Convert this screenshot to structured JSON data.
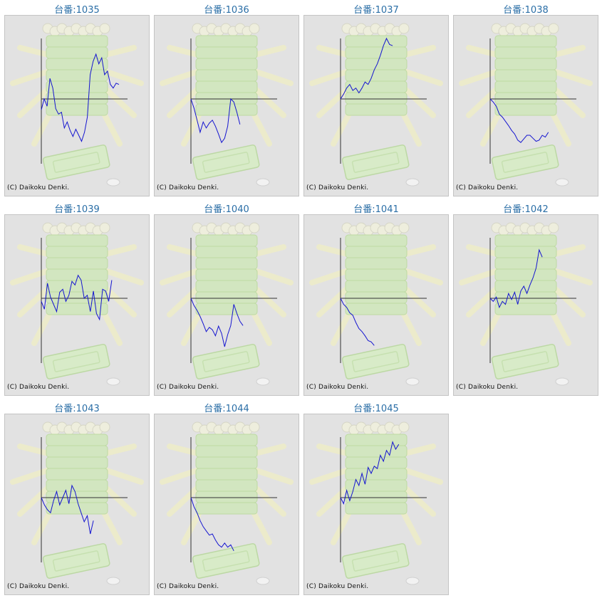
{
  "copyright": "(C) Daikoku Denki.",
  "colors": {
    "title": "#2a6ea6",
    "line": "#1515d0",
    "axis": "#333333",
    "panel": "#e2e2e2"
  },
  "chart_data": [
    {
      "type": "line",
      "title": "台番:1035",
      "y": [
        -18,
        0,
        -12,
        34,
        18,
        -16,
        -25,
        -22,
        -48,
        -38,
        -52,
        -62,
        -50,
        -60,
        -70,
        -55,
        -30,
        40,
        62,
        74,
        58,
        68,
        40,
        46,
        24,
        18,
        26,
        24
      ]
    },
    {
      "type": "line",
      "title": "台番:1036",
      "y": [
        0,
        -15,
        -35,
        -55,
        -38,
        -48,
        -40,
        -35,
        -45,
        -58,
        -72,
        -65,
        -45,
        0,
        -5,
        -22,
        -42
      ]
    },
    {
      "type": "line",
      "title": "台番:1037",
      "y": [
        0,
        8,
        18,
        24,
        14,
        18,
        10,
        18,
        28,
        24,
        34,
        48,
        58,
        72,
        88,
        100,
        90,
        88
      ]
    },
    {
      "type": "line",
      "title": "台番:1038",
      "y": [
        0,
        -5,
        -12,
        -25,
        -30,
        -37,
        -44,
        -52,
        -58,
        -68,
        -72,
        -66,
        -60,
        -60,
        -65,
        -70,
        -68,
        -60,
        -63,
        -55
      ]
    },
    {
      "type": "line",
      "title": "台番:1039",
      "y": [
        -5,
        -18,
        25,
        2,
        -10,
        -22,
        10,
        15,
        -5,
        5,
        28,
        22,
        38,
        30,
        0,
        5,
        -22,
        12,
        -25,
        -35,
        15,
        12,
        -5,
        30
      ]
    },
    {
      "type": "line",
      "title": "台番:1040",
      "y": [
        0,
        -12,
        -20,
        -30,
        -42,
        -55,
        -48,
        -52,
        -62,
        -46,
        -58,
        -80,
        -60,
        -45,
        -10,
        -25,
        -38,
        -45
      ]
    },
    {
      "type": "line",
      "title": "台番:1041",
      "y": [
        0,
        -10,
        -15,
        -24,
        -28,
        -40,
        -50,
        -55,
        -62,
        -70,
        -72,
        -78
      ]
    },
    {
      "type": "line",
      "title": "台番:1042",
      "y": [
        0,
        -5,
        2,
        -15,
        -5,
        -10,
        8,
        -2,
        10,
        -10,
        12,
        20,
        8,
        22,
        34,
        50,
        80,
        68
      ]
    },
    {
      "type": "line",
      "title": "台番:1043",
      "y": [
        0,
        -12,
        -20,
        -25,
        -5,
        10,
        -12,
        0,
        12,
        -10,
        20,
        10,
        -10,
        -25,
        -40,
        -30,
        -60,
        -38
      ]
    },
    {
      "type": "line",
      "title": "台番:1044",
      "y": [
        0,
        -15,
        -25,
        -38,
        -48,
        -55,
        -62,
        -60,
        -70,
        -78,
        -82,
        -75,
        -82,
        -78,
        -88
      ]
    },
    {
      "type": "line",
      "title": "台番:1045",
      "y": [
        0,
        -10,
        12,
        -5,
        10,
        30,
        20,
        40,
        22,
        50,
        40,
        52,
        48,
        70,
        60,
        78,
        70,
        92,
        80,
        88
      ]
    }
  ]
}
